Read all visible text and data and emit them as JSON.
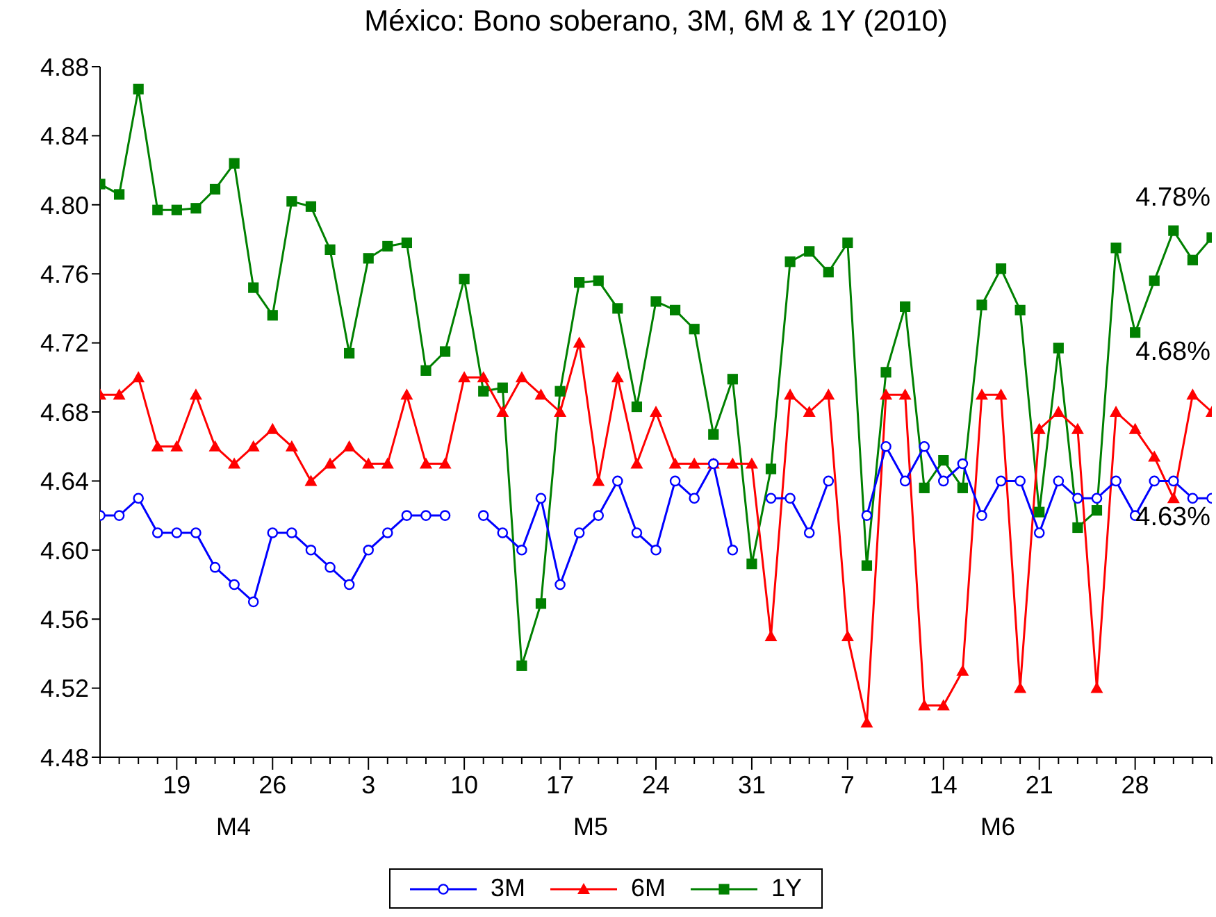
{
  "chart_data": {
    "type": "line",
    "title": "México: Bono soberano, 3M, 6M & 1Y (2010)",
    "categories": [
      null,
      null,
      null,
      null,
      "19",
      null,
      null,
      null,
      null,
      "26",
      null,
      null,
      null,
      null,
      "3",
      null,
      null,
      null,
      null,
      "10",
      null,
      null,
      null,
      null,
      "17",
      null,
      null,
      null,
      null,
      "24",
      null,
      null,
      null,
      null,
      "31",
      null,
      null,
      null,
      null,
      "7",
      null,
      null,
      null,
      null,
      "14",
      null,
      null,
      null,
      null,
      "21",
      null,
      null,
      null,
      null,
      "28",
      null,
      null,
      null,
      null
    ],
    "series": [
      {
        "name": "3M",
        "color": "#0000ff",
        "marker": "circle",
        "values": [
          4.62,
          4.62,
          4.63,
          4.61,
          4.61,
          4.61,
          4.59,
          4.58,
          4.57,
          4.61,
          4.61,
          4.6,
          4.59,
          4.58,
          4.6,
          4.61,
          4.62,
          4.62,
          4.62,
          null,
          4.62,
          4.61,
          4.6,
          4.63,
          4.58,
          4.61,
          4.62,
          4.64,
          4.61,
          4.6,
          4.64,
          4.63,
          4.65,
          4.6,
          null,
          4.63,
          4.63,
          4.61,
          4.64,
          null,
          4.62,
          4.66,
          4.64,
          4.66,
          4.64,
          4.65,
          4.62,
          4.64,
          4.64,
          4.61,
          4.64,
          4.63,
          4.63,
          4.64,
          4.62,
          4.64,
          4.64,
          4.63,
          4.63
        ]
      },
      {
        "name": "6M",
        "color": "#ff0000",
        "marker": "triangle",
        "values": [
          4.69,
          4.69,
          4.7,
          4.66,
          4.66,
          4.69,
          4.66,
          4.65,
          4.66,
          4.67,
          4.66,
          4.64,
          4.65,
          4.66,
          4.65,
          4.65,
          4.69,
          4.65,
          4.65,
          4.7,
          4.7,
          4.68,
          4.7,
          4.69,
          4.68,
          4.72,
          4.64,
          4.7,
          4.65,
          4.68,
          4.65,
          4.65,
          4.65,
          4.65,
          4.65,
          4.55,
          4.69,
          4.68,
          4.69,
          4.55,
          4.5,
          4.69,
          4.69,
          4.51,
          4.51,
          4.53,
          4.69,
          4.69,
          4.52,
          4.67,
          4.68,
          4.67,
          4.52,
          4.68,
          4.67,
          4.654,
          4.63,
          4.69,
          4.68
        ]
      },
      {
        "name": "1Y",
        "color": "#008000",
        "marker": "square",
        "values": [
          4.812,
          4.806,
          4.867,
          4.797,
          4.797,
          4.798,
          4.809,
          4.824,
          4.752,
          4.736,
          4.802,
          4.799,
          4.774,
          4.714,
          4.769,
          4.776,
          4.778,
          4.704,
          4.715,
          4.757,
          4.692,
          4.694,
          4.533,
          4.569,
          4.692,
          4.755,
          4.756,
          4.74,
          4.683,
          4.744,
          4.739,
          4.728,
          4.667,
          4.699,
          4.592,
          4.647,
          4.767,
          4.773,
          4.761,
          4.778,
          4.591,
          4.703,
          4.741,
          4.636,
          4.652,
          4.636,
          4.742,
          4.763,
          4.739,
          4.622,
          4.717,
          4.613,
          4.623,
          4.775,
          4.726,
          4.756,
          4.785,
          4.768,
          4.781
        ]
      }
    ],
    "ylim": [
      4.48,
      4.88
    ],
    "yticks": [
      4.48,
      4.52,
      4.56,
      {
        "value": 4.6,
        "label": "4.60"
      },
      4.64,
      4.68,
      4.72,
      4.76,
      {
        "value": 4.8,
        "label": "4.80"
      },
      4.84,
      4.88
    ],
    "annotations": [
      "M4",
      "M5",
      "M6",
      "4.78%",
      "4.68%",
      "4.63%"
    ],
    "grid": false,
    "legend": "bottom",
    "line_style": "solid"
  }
}
